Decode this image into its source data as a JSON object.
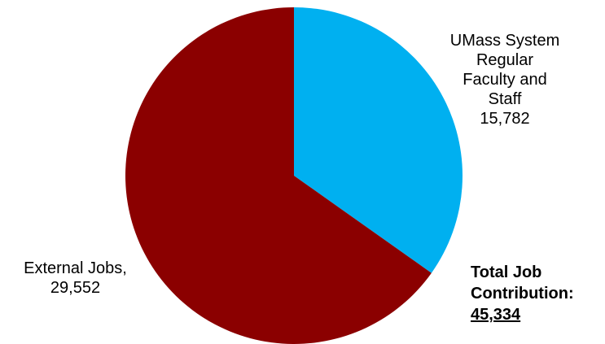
{
  "chart_data": {
    "type": "pie",
    "start_angle_deg": 0,
    "direction": "clockwise",
    "slices": [
      {
        "label_lines": [
          "UMass System",
          "Regular",
          "Faculty and",
          "Staff"
        ],
        "value": 15782,
        "value_text": "15,782",
        "color": "#00B0F0"
      },
      {
        "label_lines": [
          "External Jobs,"
        ],
        "value": 29552,
        "value_text": "29,552",
        "color": "#8B0000"
      }
    ],
    "annotation": {
      "line1": "Total Job",
      "line2": "Contribution:",
      "value": "45,334"
    }
  }
}
